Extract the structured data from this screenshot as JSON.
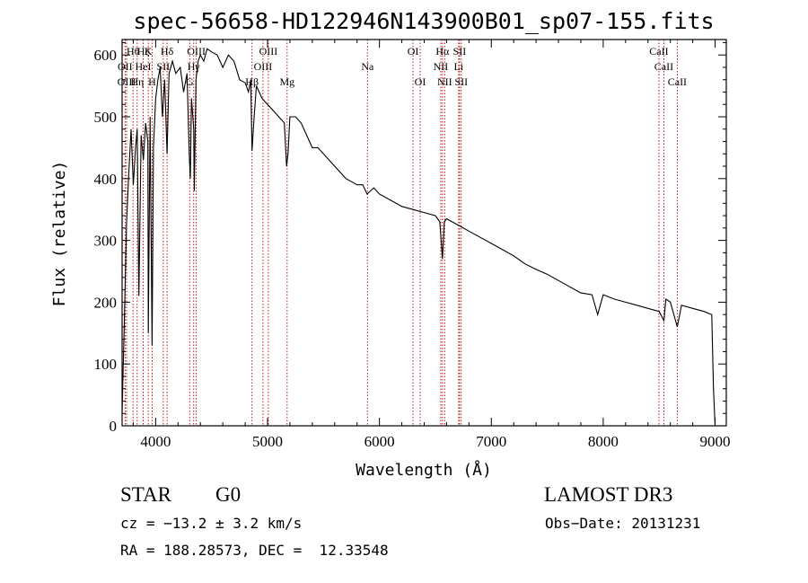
{
  "chart_data": {
    "type": "line",
    "title": "spec-56658-HD122946N143900B01_sp07-155.fits",
    "xlabel": "Wavelength (Å)",
    "ylabel": "Flux (relative)",
    "xlim": [
      3700,
      9100
    ],
    "ylim": [
      0,
      625
    ],
    "xticks": [
      4000,
      5000,
      6000,
      7000,
      8000,
      9000
    ],
    "yticks": [
      0,
      100,
      200,
      300,
      400,
      500,
      600
    ],
    "series": [
      {
        "name": "spectrum",
        "x": [
          3700,
          3720,
          3740,
          3760,
          3780,
          3800,
          3820,
          3835,
          3850,
          3870,
          3890,
          3910,
          3930,
          3934,
          3950,
          3968,
          3980,
          4000,
          4020,
          4040,
          4060,
          4080,
          4102,
          4120,
          4150,
          4180,
          4200,
          4220,
          4250,
          4280,
          4300,
          4310,
          4320,
          4340,
          4345,
          4360,
          4380,
          4400,
          4430,
          4460,
          4500,
          4550,
          4600,
          4650,
          4700,
          4750,
          4800,
          4830,
          4850,
          4861,
          4880,
          4900,
          4950,
          5000,
          5050,
          5100,
          5150,
          5170,
          5183,
          5200,
          5250,
          5300,
          5350,
          5400,
          5450,
          5500,
          5550,
          5600,
          5650,
          5700,
          5750,
          5800,
          5850,
          5890,
          5950,
          6000,
          6100,
          6200,
          6300,
          6400,
          6500,
          6540,
          6563,
          6580,
          6600,
          6700,
          6800,
          6900,
          7000,
          7100,
          7200,
          7300,
          7400,
          7500,
          7600,
          7700,
          7800,
          7900,
          7950,
          8000,
          8100,
          8200,
          8300,
          8400,
          8500,
          8542,
          8560,
          8600,
          8662,
          8700,
          8800,
          8900,
          8970,
          8985,
          9000
        ],
        "values": [
          20,
          170,
          330,
          410,
          480,
          390,
          450,
          480,
          210,
          470,
          430,
          490,
          460,
          150,
          500,
          130,
          450,
          530,
          560,
          580,
          500,
          560,
          440,
          570,
          590,
          570,
          575,
          580,
          540,
          570,
          440,
          400,
          530,
          480,
          380,
          560,
          590,
          600,
          590,
          610,
          605,
          600,
          580,
          600,
          590,
          560,
          555,
          540,
          560,
          445,
          500,
          550,
          530,
          520,
          510,
          500,
          490,
          420,
          440,
          500,
          500,
          490,
          470,
          450,
          450,
          440,
          430,
          420,
          410,
          400,
          395,
          390,
          390,
          375,
          385,
          375,
          365,
          355,
          350,
          345,
          340,
          330,
          270,
          330,
          335,
          325,
          315,
          305,
          295,
          285,
          275,
          262,
          253,
          245,
          235,
          225,
          215,
          212,
          180,
          212,
          205,
          200,
          195,
          190,
          185,
          170,
          205,
          200,
          160,
          195,
          190,
          185,
          180,
          60,
          0
        ]
      }
    ],
    "lines": [
      {
        "label": "Hθ",
        "x": 3798,
        "row": 1
      },
      {
        "label": "OII",
        "x": 3727,
        "row": 2
      },
      {
        "label": "OIII",
        "x": 3740,
        "row": 3
      },
      {
        "label": "Hη",
        "x": 3835,
        "row": 3
      },
      {
        "label": "HeI",
        "x": 3889,
        "row": 2
      },
      {
        "label": "Hζ",
        "x": 3889,
        "row": 1
      },
      {
        "label": "K",
        "x": 3934,
        "row": 1
      },
      {
        "label": "H",
        "x": 3968,
        "row": 3
      },
      {
        "label": "SII",
        "x": 4068,
        "row": 2
      },
      {
        "label": "Hδ",
        "x": 4102,
        "row": 1
      },
      {
        "label": "OIII",
        "x": 4363,
        "row": 1
      },
      {
        "label": "Hγ",
        "x": 4340,
        "row": 2
      },
      {
        "label": "G",
        "x": 4304,
        "row": 3
      },
      {
        "label": "Hβ",
        "x": 4861,
        "row": 3
      },
      {
        "label": "OIII",
        "x": 5007,
        "row": 1
      },
      {
        "label": "OIII",
        "x": 4959,
        "row": 2
      },
      {
        "label": "Mg",
        "x": 5175,
        "row": 3
      },
      {
        "label": "Na",
        "x": 5893,
        "row": 2
      },
      {
        "label": "OI",
        "x": 6300,
        "row": 1
      },
      {
        "label": "OI",
        "x": 6364,
        "row": 3
      },
      {
        "label": "Hα",
        "x": 6563,
        "row": 1
      },
      {
        "label": "NII",
        "x": 6548,
        "row": 2
      },
      {
        "label": "NII",
        "x": 6583,
        "row": 3
      },
      {
        "label": "SII",
        "x": 6716,
        "row": 1
      },
      {
        "label": "Li",
        "x": 6708,
        "row": 2
      },
      {
        "label": "SII",
        "x": 6731,
        "row": 3
      },
      {
        "label": "CaII",
        "x": 8498,
        "row": 1
      },
      {
        "label": "CaII",
        "x": 8542,
        "row": 2
      },
      {
        "label": "CaII",
        "x": 8662,
        "row": 3
      }
    ]
  },
  "info": {
    "object_type": "STAR",
    "subclass": "G0",
    "survey": "LAMOST DR3",
    "cz": "cz = −13.2 ± 3.2 km/s",
    "obs_date": "Obs−Date: 20131231",
    "coords": "RA = 188.28573, DEC =  12.33548"
  },
  "colors": {
    "line_markers": "#c00000",
    "spectrum": "#000000"
  }
}
